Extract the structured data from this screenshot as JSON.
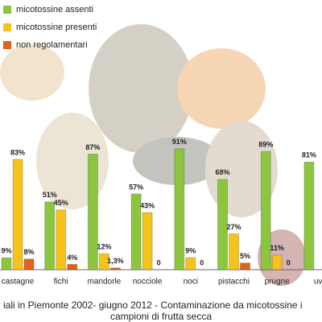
{
  "chart_data": {
    "type": "bar",
    "title": "iali in Piemonte 2002- giugno 2012 - Contaminazione da micotossine i",
    "subtitle": "campioni di frutta secca",
    "categories": [
      "castagne",
      "fichi",
      "mandorle",
      "nocciole",
      "noci",
      "pistacchi",
      "prugne",
      "uve"
    ],
    "series": [
      {
        "name": "micotossine assenti",
        "color": "#8cc63e",
        "values": [
          9,
          51,
          87,
          57,
          91,
          68,
          89,
          81
        ],
        "value_labels": [
          "9%",
          "51%",
          "87%",
          "57%",
          "91%",
          "68%",
          "89%",
          "81%"
        ]
      },
      {
        "name": "micotossine presenti",
        "color": "#f6c21c",
        "values": [
          83,
          45,
          12,
          43,
          9,
          27,
          11,
          null
        ],
        "value_labels": [
          "83%",
          "45%",
          "12%",
          "43%",
          "9%",
          "27%",
          "11%",
          null
        ]
      },
      {
        "name": "non regolamentari",
        "color": "#e5601b",
        "values": [
          8,
          4,
          1.3,
          0,
          0,
          5,
          0,
          null
        ],
        "value_labels": [
          "8%",
          "4%",
          "1,3%",
          "0",
          "0",
          "5%",
          "0",
          null
        ]
      }
    ],
    "legend": "top-left"
  }
}
